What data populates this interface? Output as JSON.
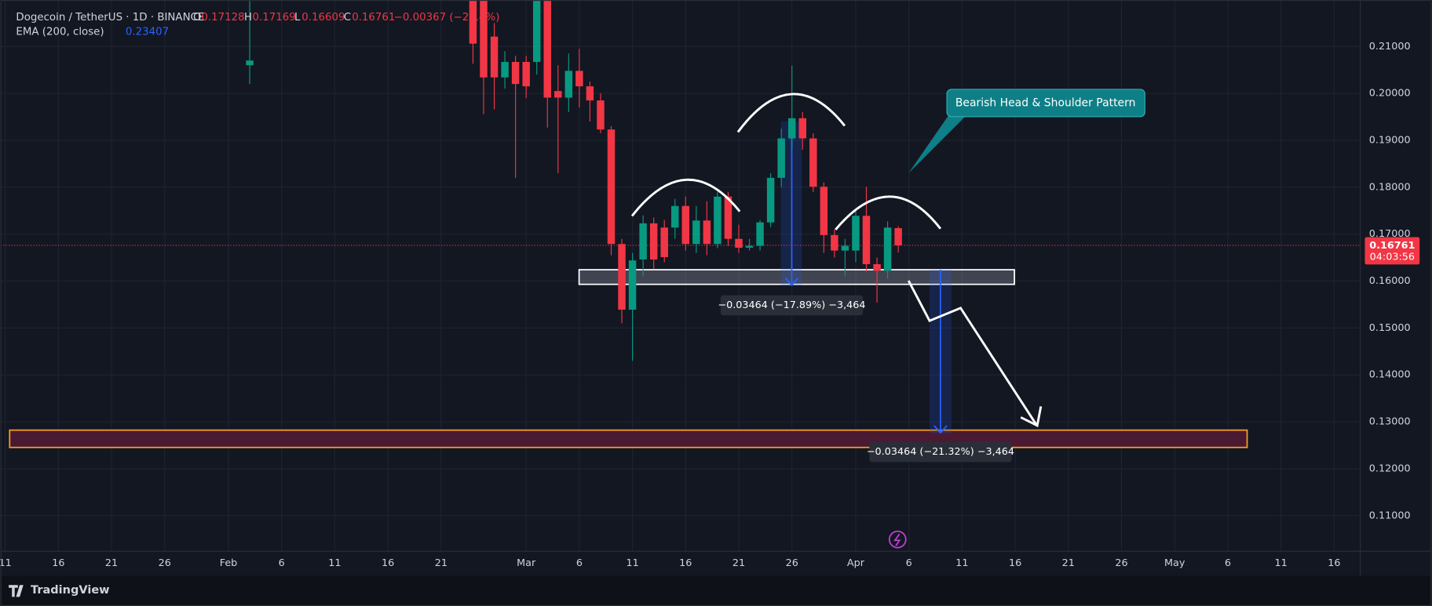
{
  "chart_data": {
    "type": "candlestick",
    "title": "Dogecoin / TetherUS · 1D · BINANCE",
    "ohlc_header": {
      "o_label": "O",
      "o": "0.17128",
      "h_label": "H",
      "h": "0.17169",
      "l_label": "L",
      "l": "0.16609",
      "c_label": "C",
      "c": "0.16761",
      "change": "−0.00367 (−2.14%)"
    },
    "indicator": {
      "name": "EMA (200, close)",
      "value": "0.23407",
      "color": "#2962ff"
    },
    "last_price": {
      "label": "0.16761",
      "countdown": "04:03:56",
      "value": 0.16761,
      "color": "#f23645"
    },
    "annotations": {
      "pattern": "Bearish Head & Shoulder Pattern",
      "measure_1": "−0.03464 (−17.89%) −3,464",
      "measure_2": "−0.03464 (−21.32%) −3,464"
    },
    "brand": "TradingView",
    "up_color": "#089981",
    "down_color": "#f23645",
    "grid": true,
    "xlim": [
      9.56,
      137.46
    ],
    "ylim": [
      0.1024,
      0.2199
    ],
    "yticks": [
      {
        "value": 0.11,
        "label": "0.11000"
      },
      {
        "value": 0.12,
        "label": "0.12000"
      },
      {
        "value": 0.13,
        "label": "0.13000"
      },
      {
        "value": 0.14,
        "label": "0.14000"
      },
      {
        "value": 0.15,
        "label": "0.15000"
      },
      {
        "value": 0.16,
        "label": "0.16000"
      },
      {
        "value": 0.17,
        "label": "0.17000"
      },
      {
        "value": 0.18,
        "label": "0.18000"
      },
      {
        "value": 0.19,
        "label": "0.19000"
      },
      {
        "value": 0.2,
        "label": "0.20000"
      },
      {
        "value": 0.21,
        "label": "0.21000"
      }
    ],
    "xticks": [
      {
        "value": 10,
        "label": "11"
      },
      {
        "value": 15,
        "label": "16"
      },
      {
        "value": 20,
        "label": "21"
      },
      {
        "value": 25,
        "label": "26"
      },
      {
        "value": 31,
        "label": "Feb"
      },
      {
        "value": 36,
        "label": "6"
      },
      {
        "value": 41,
        "label": "11"
      },
      {
        "value": 46,
        "label": "16"
      },
      {
        "value": 51,
        "label": "21"
      },
      {
        "value": 59,
        "label": "Mar"
      },
      {
        "value": 64,
        "label": "6"
      },
      {
        "value": 69,
        "label": "11"
      },
      {
        "value": 74,
        "label": "16"
      },
      {
        "value": 79,
        "label": "21"
      },
      {
        "value": 84,
        "label": "26"
      },
      {
        "value": 90,
        "label": "Apr"
      },
      {
        "value": 95,
        "label": "6"
      },
      {
        "value": 100,
        "label": "11"
      },
      {
        "value": 105,
        "label": "16"
      },
      {
        "value": 110,
        "label": "21"
      },
      {
        "value": 115,
        "label": "26"
      },
      {
        "value": 120,
        "label": "May"
      },
      {
        "value": 125,
        "label": "6"
      },
      {
        "value": 130,
        "label": "11"
      },
      {
        "value": 135,
        "label": "16"
      }
    ],
    "x": [
      33,
      54,
      55,
      56,
      57,
      58,
      59,
      60,
      61,
      62,
      63,
      64,
      65,
      66,
      67,
      68,
      69,
      70,
      71,
      72,
      73,
      74,
      75,
      76,
      77,
      78,
      79,
      80,
      81,
      82,
      83,
      84,
      85,
      86,
      87,
      88,
      89,
      90,
      91,
      92,
      93,
      94
    ],
    "open": [
      0.206,
      0.2199,
      0.2199,
      0.2121,
      0.2034,
      0.2067,
      0.2067,
      0.2067,
      0.2199,
      0.2005,
      0.1991,
      0.2048,
      0.2015,
      0.1985,
      0.1923,
      0.1679,
      0.1539,
      0.1646,
      0.1723,
      0.1714,
      0.1714,
      0.176,
      0.1679,
      0.1729,
      0.1679,
      0.178,
      0.169,
      0.1671,
      0.1675,
      0.1725,
      0.182,
      0.1904,
      0.1947,
      0.1904,
      0.1801,
      0.1698,
      0.1665,
      0.1665,
      0.1739,
      0.1636,
      0.1622,
      0.17128
    ],
    "high": [
      0.2199,
      0.2199,
      0.2199,
      0.215,
      0.209,
      0.208,
      0.208,
      0.2199,
      0.2199,
      0.206,
      0.2085,
      0.2095,
      0.2025,
      0.2,
      0.193,
      0.169,
      0.166,
      0.174,
      0.1735,
      0.173,
      0.1775,
      0.178,
      0.176,
      0.177,
      0.179,
      0.179,
      0.172,
      0.169,
      0.173,
      0.183,
      0.1925,
      0.2059,
      0.196,
      0.1915,
      0.181,
      0.171,
      0.169,
      0.175,
      0.1801,
      0.165,
      0.1727,
      0.17169
    ],
    "low": [
      0.202,
      0.2063,
      0.1956,
      0.1966,
      0.201,
      0.182,
      0.199,
      0.204,
      0.1927,
      0.183,
      0.196,
      0.197,
      0.194,
      0.1915,
      0.1655,
      0.151,
      0.143,
      0.161,
      0.1625,
      0.164,
      0.169,
      0.1665,
      0.166,
      0.1655,
      0.167,
      0.1675,
      0.166,
      0.1665,
      0.1665,
      0.1715,
      0.18,
      0.188,
      0.188,
      0.179,
      0.166,
      0.165,
      0.161,
      0.164,
      0.162,
      0.1554,
      0.1605,
      0.16609
    ],
    "close": [
      0.207,
      0.2106,
      0.2034,
      0.2034,
      0.2067,
      0.202,
      0.2015,
      0.2199,
      0.1991,
      0.1991,
      0.2048,
      0.2015,
      0.1985,
      0.1923,
      0.1679,
      0.1539,
      0.1644,
      0.1723,
      0.1646,
      0.1651,
      0.176,
      0.1679,
      0.1729,
      0.1679,
      0.178,
      0.169,
      0.1671,
      0.1675,
      0.1725,
      0.182,
      0.1904,
      0.1947,
      0.1904,
      0.1801,
      0.1698,
      0.1665,
      0.1675,
      0.1739,
      0.1636,
      0.1622,
      0.1714,
      0.16761
    ]
  }
}
